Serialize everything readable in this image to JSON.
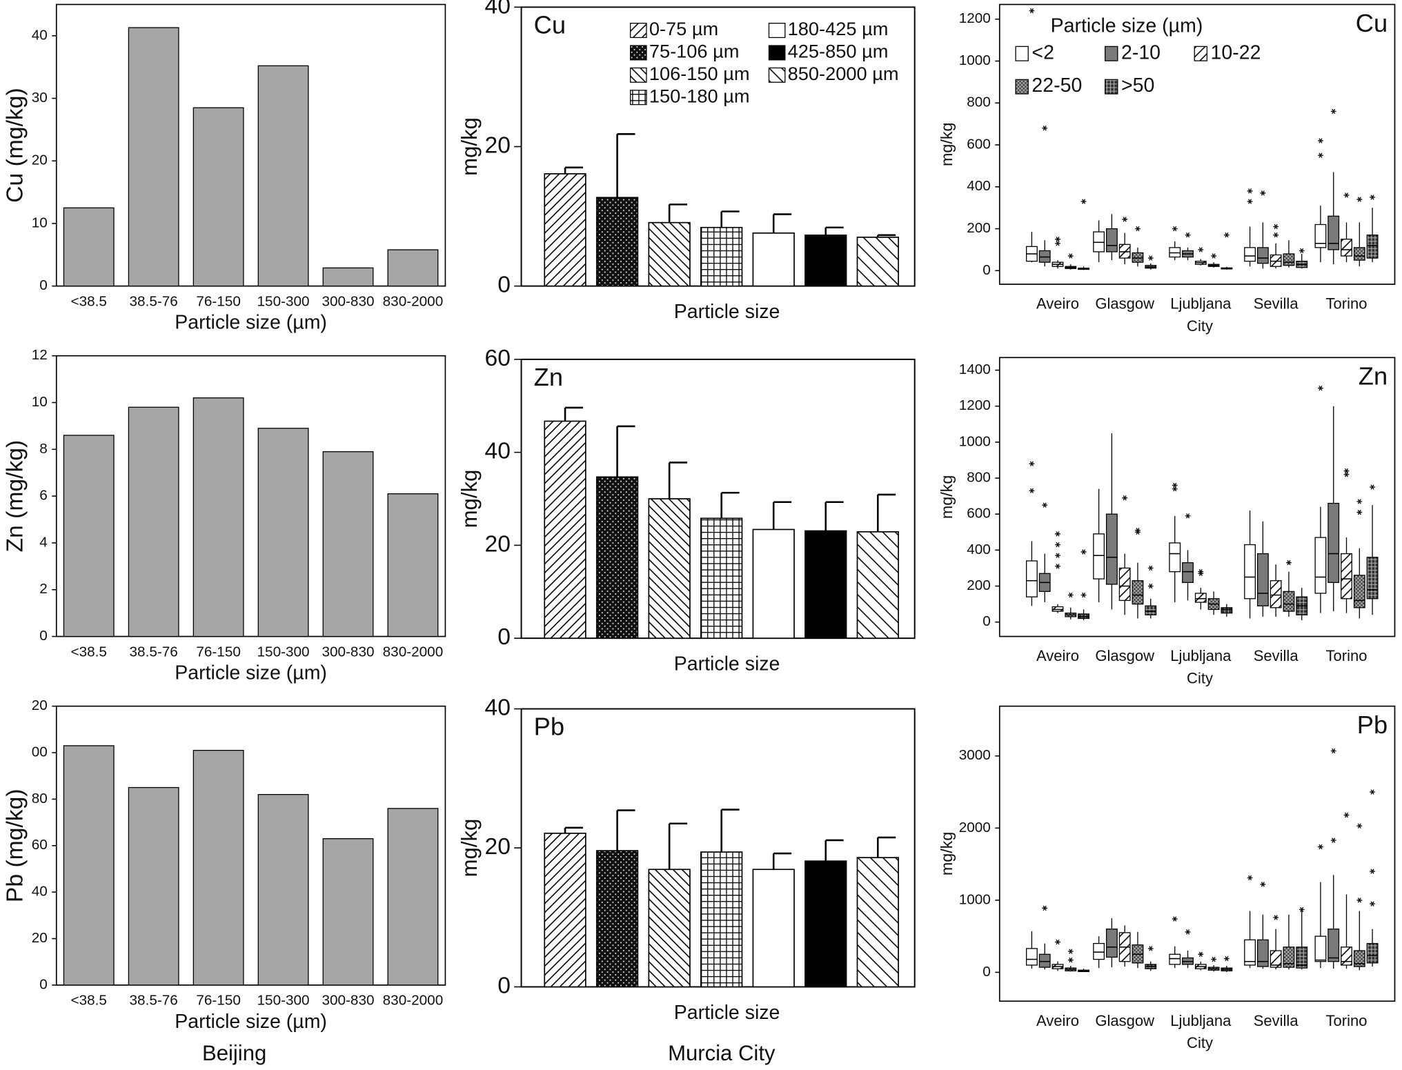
{
  "captions": [
    "Beijing",
    "Murcia City"
  ],
  "chart_data": [
    {
      "type": "bar",
      "ylabel": "Cu (mg/kg)",
      "xlabel": "Particle size (µm)",
      "color": "#a6a6a6",
      "categories": [
        "<38.5",
        "38.5-76",
        "76-150",
        "150-300",
        "300-830",
        "830-2000"
      ],
      "values": [
        12.5,
        41.3,
        28.5,
        35.2,
        2.9,
        5.8
      ],
      "ylim": [
        0,
        45
      ],
      "yticks": [
        0,
        10,
        20,
        30,
        40
      ]
    },
    {
      "type": "bar",
      "ylabel": "Zn (mg/kg)",
      "xlabel": "Particle size (µm)",
      "color": "#a6a6a6",
      "categories": [
        "<38.5",
        "38.5-76",
        "76-150",
        "150-300",
        "300-830",
        "830-2000"
      ],
      "values": [
        8.6,
        9.8,
        10.2,
        8.9,
        7.9,
        6.1
      ],
      "ylim": [
        0,
        12
      ],
      "yticks": [
        0,
        2,
        4,
        6,
        8,
        10,
        12
      ]
    },
    {
      "type": "bar",
      "ylabel": "Pb (mg/kg)",
      "xlabel": "Particle size (µm)",
      "color": "#a6a6a6",
      "categories": [
        "<38.5",
        "38.5-76",
        "76-150",
        "150-300",
        "300-830",
        "830-2000"
      ],
      "values": [
        103,
        85,
        101,
        82,
        63,
        76
      ],
      "ylim": [
        0,
        120
      ],
      "yticks": [
        0,
        20,
        40,
        60,
        80,
        {
          "value": 100,
          "label": "00"
        },
        {
          "value": 120,
          "label": "20"
        }
      ]
    },
    {
      "type": "bar_error",
      "label": "Cu",
      "ylabel": "mg/kg",
      "xlabel": "Particle size",
      "categories": [
        "0-75 µm",
        "75-106 µm",
        "106-150 µm",
        "150-180 µm",
        "180-425 µm",
        "425-850 µm",
        "850-2000 µm"
      ],
      "values": [
        16.1,
        12.7,
        9.1,
        8.4,
        7.6,
        7.3,
        7.0
      ],
      "errors": [
        0.9,
        9.1,
        2.6,
        2.3,
        2.7,
        1.1,
        0.3
      ],
      "patterns": [
        "diag-up",
        "dots",
        "diag-down",
        "grid",
        "white",
        "black",
        "diag-down-sparse"
      ],
      "ylim": [
        0,
        40
      ],
      "yticks": [
        0,
        20,
        40
      ]
    },
    {
      "type": "bar_error",
      "label": "Zn",
      "ylabel": "mg/kg",
      "xlabel": "Particle size",
      "values": [
        46.7,
        34.7,
        30.0,
        25.8,
        23.4,
        23.1,
        22.9
      ],
      "errors": [
        2.9,
        10.9,
        7.8,
        5.5,
        5.9,
        6.2,
        8.0
      ],
      "patterns": [
        "diag-up",
        "dots",
        "diag-down",
        "grid",
        "white",
        "black",
        "diag-down-sparse"
      ],
      "ylim": [
        0,
        60
      ],
      "yticks": [
        0,
        20,
        40,
        60
      ]
    },
    {
      "type": "bar_error",
      "label": "Pb",
      "ylabel": "mg/kg",
      "xlabel": "Particle size",
      "values": [
        22.1,
        19.6,
        16.9,
        19.4,
        16.9,
        18.1,
        18.6
      ],
      "errors": [
        0.8,
        5.8,
        6.6,
        6.1,
        2.3,
        3.0,
        2.9
      ],
      "patterns": [
        "diag-up",
        "dots",
        "diag-down",
        "grid",
        "white",
        "black",
        "diag-down-sparse"
      ],
      "ylim": [
        0,
        40
      ],
      "yticks": [
        0,
        20,
        40
      ]
    },
    {
      "type": "box",
      "label": "Cu",
      "ylabel": "mg/kg",
      "xlabel": "City",
      "legend_title": "Particle size (µm)",
      "categories": [
        "Aveiro",
        "Glasgow",
        "Ljubljana",
        "Sevilla",
        "Torino"
      ],
      "series": [
        "<2",
        "2-10",
        "10-22",
        "22-50",
        ">50"
      ],
      "fills": [
        "white",
        "gray",
        "dots",
        "checker",
        "grid"
      ],
      "boxes": [
        [
          [
            40,
            45,
            80,
            115,
            185
          ],
          [
            20,
            40,
            65,
            95,
            145
          ],
          [
            10,
            20,
            30,
            40,
            50
          ],
          [
            5,
            10,
            15,
            20,
            30
          ],
          [
            3,
            6,
            8,
            12,
            20
          ]
        ],
        [
          [
            40,
            90,
            135,
            185,
            240
          ],
          [
            50,
            90,
            120,
            200,
            270
          ],
          [
            30,
            60,
            90,
            125,
            180
          ],
          [
            20,
            40,
            60,
            85,
            110
          ],
          [
            5,
            12,
            18,
            25,
            35
          ]
        ],
        [
          [
            50,
            65,
            85,
            110,
            140
          ],
          [
            50,
            65,
            80,
            95,
            110
          ],
          [
            25,
            30,
            38,
            45,
            55
          ],
          [
            15,
            20,
            25,
            30,
            40
          ],
          [
            5,
            8,
            10,
            13,
            18
          ]
        ],
        [
          [
            20,
            45,
            70,
            110,
            210
          ],
          [
            10,
            35,
            60,
            110,
            230
          ],
          [
            10,
            20,
            45,
            75,
            130
          ],
          [
            15,
            25,
            40,
            80,
            145
          ],
          [
            10,
            15,
            30,
            45,
            80
          ]
        ],
        [
          [
            40,
            110,
            130,
            220,
            310
          ],
          [
            30,
            100,
            130,
            260,
            470
          ],
          [
            40,
            70,
            100,
            150,
            230
          ],
          [
            20,
            50,
            70,
            110,
            230
          ],
          [
            40,
            60,
            120,
            170,
            300
          ]
        ]
      ],
      "outliers": [
        [
          [
            1240
          ],
          [
            680
          ],
          [
            130,
            150
          ],
          [
            70
          ],
          [
            330
          ]
        ],
        [
          [],
          [],
          [
            245
          ],
          [
            200
          ],
          [
            60
          ]
        ],
        [
          [
            200
          ],
          [
            170
          ],
          [
            100
          ],
          [
            70
          ],
          [
            170
          ]
        ],
        [
          [
            330,
            380
          ],
          [
            370
          ],
          [
            170,
            210
          ],
          [],
          [
            95
          ]
        ],
        [
          [
            550,
            620
          ],
          [
            760
          ],
          [
            360
          ],
          [
            340
          ],
          [
            350
          ]
        ]
      ],
      "ylim": [
        -65,
        1270
      ],
      "yticks": [
        0,
        200,
        400,
        600,
        800,
        1000,
        1200
      ]
    },
    {
      "type": "box",
      "label": "Zn",
      "ylabel": "mg/kg",
      "xlabel": "City",
      "categories": [
        "Aveiro",
        "Glasgow",
        "Ljubljana",
        "Sevilla",
        "Torino"
      ],
      "fills": [
        "white",
        "gray",
        "dots",
        "checker",
        "grid"
      ],
      "boxes": [
        [
          [
            90,
            140,
            230,
            340,
            450
          ],
          [
            110,
            170,
            220,
            270,
            380
          ],
          [
            50,
            60,
            70,
            85,
            100
          ],
          [
            15,
            30,
            40,
            50,
            80
          ],
          [
            10,
            20,
            30,
            45,
            70
          ]
        ],
        [
          [
            110,
            240,
            370,
            490,
            740
          ],
          [
            70,
            210,
            360,
            600,
            1050
          ],
          [
            40,
            120,
            200,
            300,
            380
          ],
          [
            20,
            100,
            150,
            230,
            330
          ],
          [
            20,
            40,
            60,
            90,
            130
          ]
        ],
        [
          [
            110,
            280,
            380,
            440,
            590
          ],
          [
            120,
            220,
            280,
            330,
            400
          ],
          [
            70,
            110,
            130,
            160,
            190
          ],
          [
            40,
            70,
            100,
            130,
            170
          ],
          [
            30,
            50,
            70,
            80,
            100
          ]
        ],
        [
          [
            20,
            130,
            250,
            430,
            620
          ],
          [
            30,
            90,
            160,
            380,
            560
          ],
          [
            30,
            80,
            150,
            230,
            320
          ],
          [
            30,
            60,
            100,
            170,
            280
          ],
          [
            10,
            40,
            90,
            140,
            190
          ]
        ],
        [
          [
            50,
            160,
            250,
            470,
            640
          ],
          [
            60,
            220,
            380,
            660,
            1200
          ],
          [
            50,
            130,
            240,
            380,
            470
          ],
          [
            20,
            80,
            120,
            260,
            410
          ],
          [
            40,
            130,
            180,
            360,
            650
          ]
        ]
      ],
      "outliers": [
        [
          [
            730,
            880
          ],
          [
            650
          ],
          [
            310,
            370,
            430,
            490
          ],
          [
            150
          ],
          [
            150,
            390
          ]
        ],
        [
          [],
          [],
          [
            690
          ],
          [
            500,
            510
          ],
          [
            200,
            300
          ]
        ],
        [
          [
            740,
            760
          ],
          [
            590
          ],
          [
            270,
            280
          ],
          [],
          []
        ],
        [
          [],
          [],
          [],
          [
            330
          ],
          []
        ],
        [
          [
            1300
          ],
          [],
          [
            820,
            840
          ],
          [
            610,
            670
          ],
          [
            750
          ]
        ]
      ],
      "ylim": [
        -80,
        1470
      ],
      "yticks": [
        0,
        200,
        400,
        600,
        800,
        1000,
        1200,
        1400
      ]
    },
    {
      "type": "box",
      "label": "Pb",
      "ylabel": "mg/kg",
      "xlabel": "City",
      "categories": [
        "Aveiro",
        "Glasgow",
        "Ljubljana",
        "Sevilla",
        "Torino"
      ],
      "fills": [
        "white",
        "gray",
        "dots",
        "checker",
        "grid"
      ],
      "boxes": [
        [
          [
            50,
            100,
            180,
            330,
            570
          ],
          [
            40,
            70,
            150,
            250,
            400
          ],
          [
            20,
            50,
            80,
            110,
            150
          ],
          [
            10,
            20,
            40,
            60,
            90
          ],
          [
            5,
            10,
            20,
            30,
            50
          ]
        ],
        [
          [
            60,
            180,
            280,
            400,
            500
          ],
          [
            70,
            210,
            350,
            600,
            750
          ],
          [
            80,
            150,
            350,
            550,
            650
          ],
          [
            60,
            130,
            250,
            380,
            560
          ],
          [
            20,
            50,
            80,
            110,
            150
          ]
        ],
        [
          [
            60,
            110,
            190,
            250,
            360
          ],
          [
            60,
            110,
            150,
            200,
            300
          ],
          [
            30,
            50,
            80,
            110,
            150
          ],
          [
            10,
            30,
            50,
            70,
            100
          ],
          [
            5,
            20,
            40,
            60,
            90
          ]
        ],
        [
          [
            60,
            100,
            150,
            450,
            850
          ],
          [
            50,
            80,
            150,
            450,
            800
          ],
          [
            40,
            70,
            100,
            300,
            600
          ],
          [
            40,
            70,
            120,
            350,
            800
          ],
          [
            40,
            60,
            100,
            350,
            850
          ]
        ],
        [
          [
            60,
            150,
            170,
            500,
            1250
          ],
          [
            50,
            150,
            200,
            600,
            1350
          ],
          [
            50,
            100,
            150,
            350,
            1080
          ],
          [
            30,
            80,
            120,
            300,
            850
          ],
          [
            80,
            130,
            230,
            400,
            600
          ]
        ]
      ],
      "outliers": [
        [
          [],
          [
            890
          ],
          [
            420
          ],
          [
            170,
            290
          ],
          []
        ],
        [
          [],
          [],
          [],
          [],
          [
            330
          ]
        ],
        [
          [
            740
          ],
          [
            560
          ],
          [
            250
          ],
          [
            180
          ],
          [
            190
          ]
        ],
        [
          [
            1310
          ],
          [
            1220
          ],
          [
            760
          ],
          [],
          [
            870
          ]
        ],
        [
          [
            1740
          ],
          [
            1830,
            3070
          ],
          [
            2180
          ],
          [
            1000,
            2030
          ],
          [
            950,
            1400,
            2500
          ]
        ]
      ],
      "ylim": [
        -400,
        3690
      ],
      "yticks": [
        0,
        1000,
        2000,
        3000
      ]
    }
  ]
}
